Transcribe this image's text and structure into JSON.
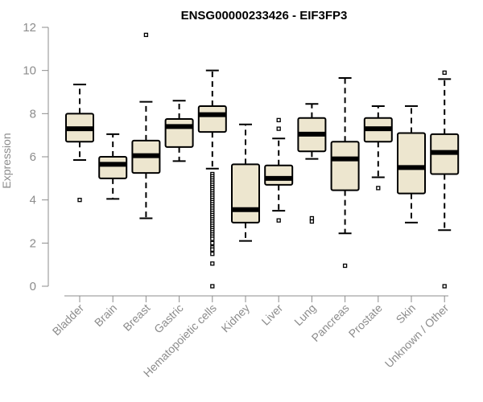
{
  "chart_data": {
    "type": "boxplot",
    "title": "ENSG00000233426 - EIF3FP3",
    "xlabel": "",
    "ylabel": "Expression",
    "ylim": [
      0,
      12
    ],
    "yticks": [
      0,
      2,
      4,
      6,
      8,
      10,
      12
    ],
    "box_fill": "#ede6cf",
    "categories": [
      "Bladder",
      "Brain",
      "Breast",
      "Gastric",
      "Hematopoietic cells",
      "Kidney",
      "Liver",
      "Lung",
      "Pancreas",
      "Prostate",
      "Skin",
      "Unknown / Other"
    ],
    "series": [
      {
        "name": "Bladder",
        "q1": 6.7,
        "median": 7.3,
        "q3": 8.0,
        "whisker_low": 5.85,
        "whisker_high": 9.35,
        "outliers": [
          4.0
        ]
      },
      {
        "name": "Brain",
        "q1": 5.0,
        "median": 5.65,
        "q3": 6.0,
        "whisker_low": 4.05,
        "whisker_high": 7.05,
        "outliers": []
      },
      {
        "name": "Breast",
        "q1": 5.25,
        "median": 6.05,
        "q3": 6.75,
        "whisker_low": 3.15,
        "whisker_high": 8.55,
        "outliers": [
          11.65
        ]
      },
      {
        "name": "Gastric",
        "q1": 6.45,
        "median": 7.4,
        "q3": 7.75,
        "whisker_low": 5.8,
        "whisker_high": 8.6,
        "outliers": []
      },
      {
        "name": "Hematopoietic cells",
        "q1": 7.15,
        "median": 7.95,
        "q3": 8.35,
        "whisker_low": 5.45,
        "whisker_high": 10.0,
        "outliers": [
          5.2,
          5.1,
          5.0,
          4.9,
          4.8,
          4.7,
          4.6,
          4.5,
          4.4,
          4.3,
          4.2,
          4.1,
          4.0,
          3.9,
          3.8,
          3.7,
          3.6,
          3.5,
          3.4,
          3.3,
          3.2,
          3.1,
          3.0,
          2.9,
          2.8,
          2.7,
          2.6,
          2.5,
          2.4,
          2.3,
          2.2,
          2.0,
          1.8,
          1.7,
          1.5,
          1.05,
          0.0
        ]
      },
      {
        "name": "Kidney",
        "q1": 2.95,
        "median": 3.55,
        "q3": 5.65,
        "whisker_low": 2.1,
        "whisker_high": 7.5,
        "outliers": []
      },
      {
        "name": "Liver",
        "q1": 4.7,
        "median": 5.0,
        "q3": 5.6,
        "whisker_low": 3.5,
        "whisker_high": 6.85,
        "outliers": [
          3.05,
          7.3,
          7.7
        ]
      },
      {
        "name": "Lung",
        "q1": 6.25,
        "median": 7.05,
        "q3": 7.8,
        "whisker_low": 5.9,
        "whisker_high": 8.45,
        "outliers": [
          3.15,
          3.0
        ]
      },
      {
        "name": "Pancreas",
        "q1": 4.45,
        "median": 5.9,
        "q3": 6.7,
        "whisker_low": 2.45,
        "whisker_high": 9.65,
        "outliers": [
          0.95
        ]
      },
      {
        "name": "Prostate",
        "q1": 6.7,
        "median": 7.3,
        "q3": 7.8,
        "whisker_low": 5.05,
        "whisker_high": 8.35,
        "outliers": [
          4.55
        ]
      },
      {
        "name": "Skin",
        "q1": 4.3,
        "median": 5.5,
        "q3": 7.1,
        "whisker_low": 2.95,
        "whisker_high": 8.35,
        "outliers": []
      },
      {
        "name": "Unknown / Other",
        "q1": 5.2,
        "median": 6.2,
        "q3": 7.05,
        "whisker_low": 2.6,
        "whisker_high": 9.6,
        "outliers": [
          9.9,
          0.0
        ]
      }
    ]
  }
}
